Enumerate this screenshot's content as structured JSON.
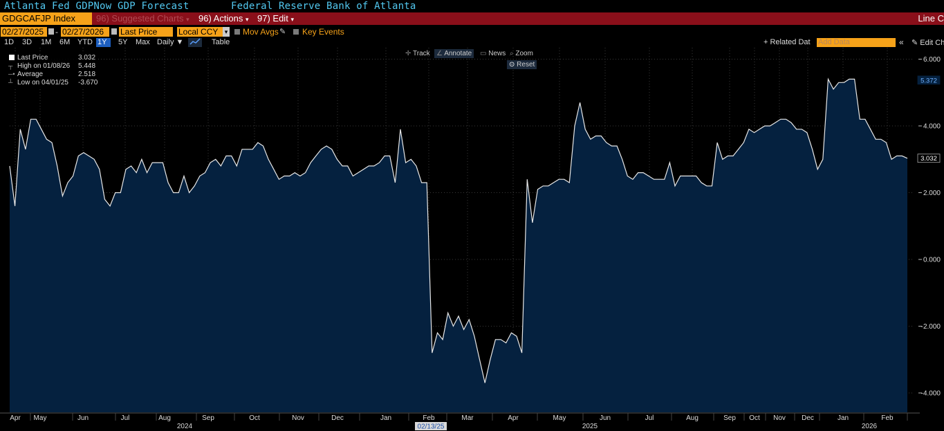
{
  "header": {
    "title": "Atlanta Fed GDPNow GDP Forecast",
    "source": "Federal Reserve Bank of Atlanta"
  },
  "command_bar": {
    "ticker": "GDGCAFJP Index",
    "suggested": "96) Suggested Charts",
    "suggested_arrow": "▾",
    "actions": "96) Actions",
    "actions_arrow": "▾",
    "edit": "97) Edit",
    "edit_arrow": "▾",
    "line_label": "Line C"
  },
  "date_row": {
    "start_date": "02/27/2025",
    "dash": "-",
    "end_date": "02/27/2026",
    "field": "Last Price",
    "currency": "Local CCY",
    "currency_arrow": "▾",
    "mov_avgs": "Mov Avgs",
    "key_events": "Key Events"
  },
  "range_row": {
    "ranges": [
      "1D",
      "3D",
      "1M",
      "6M",
      "YTD",
      "1Y",
      "5Y",
      "Max"
    ],
    "selected": "1Y",
    "frequency": "Daily ▼",
    "table": "Table",
    "related": "+ Related Dat",
    "add_data_placeholder": "Add Data",
    "collapse": "«",
    "edit_chart": "✎ Edit Ch"
  },
  "toolbar": {
    "track": "Track",
    "annotate": "Annotate",
    "news": "News",
    "zoom": "Zoom",
    "reset": "Reset"
  },
  "legend": {
    "last_label": "Last Price",
    "last_value": "3.032",
    "high_label": "High on 01/08/26",
    "high_value": "5.448",
    "avg_label": "Average",
    "avg_value": "2.518",
    "low_label": "Low on 04/01/25",
    "low_value": "-3.670"
  },
  "colors": {
    "fill": "#05213f",
    "line": "#e8e8e8",
    "grid": "#3a3a3a",
    "accent_orange": "#f6a219",
    "command_red": "#8a0f1a",
    "title_cyan": "#52c8f0"
  },
  "chart_data": {
    "type": "area",
    "series": [
      {
        "name": "Last Price",
        "values": [
          2.8,
          1.6,
          3.9,
          3.3,
          4.2,
          4.2,
          3.9,
          3.6,
          3.5,
          2.8,
          1.9,
          2.3,
          2.5,
          3.1,
          3.2,
          3.1,
          3.0,
          2.7,
          1.8,
          1.6,
          2.0,
          2.0,
          2.7,
          2.8,
          2.6,
          3.0,
          2.6,
          2.9,
          2.9,
          2.9,
          2.3,
          2.0,
          2.0,
          2.5,
          2.0,
          2.2,
          2.5,
          2.6,
          2.9,
          3.0,
          2.8,
          3.1,
          3.1,
          2.8,
          3.3,
          3.3,
          3.3,
          3.5,
          3.4,
          3.0,
          2.7,
          2.4,
          2.5,
          2.5,
          2.6,
          2.5,
          2.6,
          2.9,
          3.1,
          3.3,
          3.4,
          3.3,
          3.0,
          2.8,
          2.8,
          2.5,
          2.6,
          2.7,
          2.8,
          2.8,
          2.9,
          3.1,
          3.1,
          2.3,
          3.9,
          2.9,
          3.0,
          2.8,
          2.3,
          2.3,
          -2.8,
          -2.2,
          -2.4,
          -1.6,
          -2.0,
          -1.7,
          -2.1,
          -1.8,
          -2.3,
          -3.0,
          -3.7,
          -3.0,
          -2.4,
          -2.4,
          -2.5,
          -2.2,
          -2.3,
          -2.8,
          2.4,
          1.1,
          2.1,
          2.2,
          2.2,
          2.3,
          2.4,
          2.4,
          2.3,
          4.0,
          4.7,
          3.9,
          3.6,
          3.7,
          3.7,
          3.5,
          3.4,
          3.4,
          3.0,
          2.5,
          2.4,
          2.6,
          2.6,
          2.5,
          2.4,
          2.4,
          2.4,
          2.9,
          2.2,
          2.5,
          2.5,
          2.5,
          2.5,
          2.3,
          2.2,
          2.2,
          3.5,
          3.0,
          3.1,
          3.1,
          3.3,
          3.5,
          3.9,
          3.8,
          3.9,
          4.0,
          4.0,
          4.1,
          4.2,
          4.2,
          4.1,
          3.9,
          3.9,
          3.8,
          3.3,
          2.7,
          3.0,
          5.4,
          5.1,
          5.3,
          5.3,
          5.4,
          5.4,
          4.2,
          4.2,
          3.9,
          3.6,
          3.6,
          3.5,
          3.0,
          3.1,
          3.1,
          3.03
        ]
      }
    ],
    "x_labels": [
      "Apr",
      "May",
      "Jun",
      "Jul",
      "Aug",
      "Sep",
      "Oct",
      "Nov",
      "Dec",
      "Jan",
      "Feb",
      "Mar",
      "Apr",
      "May",
      "Jun",
      "Jul",
      "Aug",
      "Sep",
      "Oct",
      "Nov",
      "Dec",
      "Jan",
      "Feb"
    ],
    "year_labels": [
      "2024",
      "2025",
      "2026"
    ],
    "highlight_date": "02/13/25",
    "y_ticks": [
      6.0,
      4.0,
      2.0,
      0.0,
      -2.0,
      -4.0
    ],
    "y_tick_labels": [
      "6.000",
      "4.000",
      "2.000",
      "0.000",
      "-2.000",
      "-4.000"
    ],
    "ylim": [
      -4.6,
      6.2
    ],
    "grid": true,
    "legend_position": "top-left",
    "tags": [
      {
        "label": "5.372",
        "value": 5.372
      },
      {
        "label": "3.032",
        "value": 3.032
      }
    ]
  }
}
